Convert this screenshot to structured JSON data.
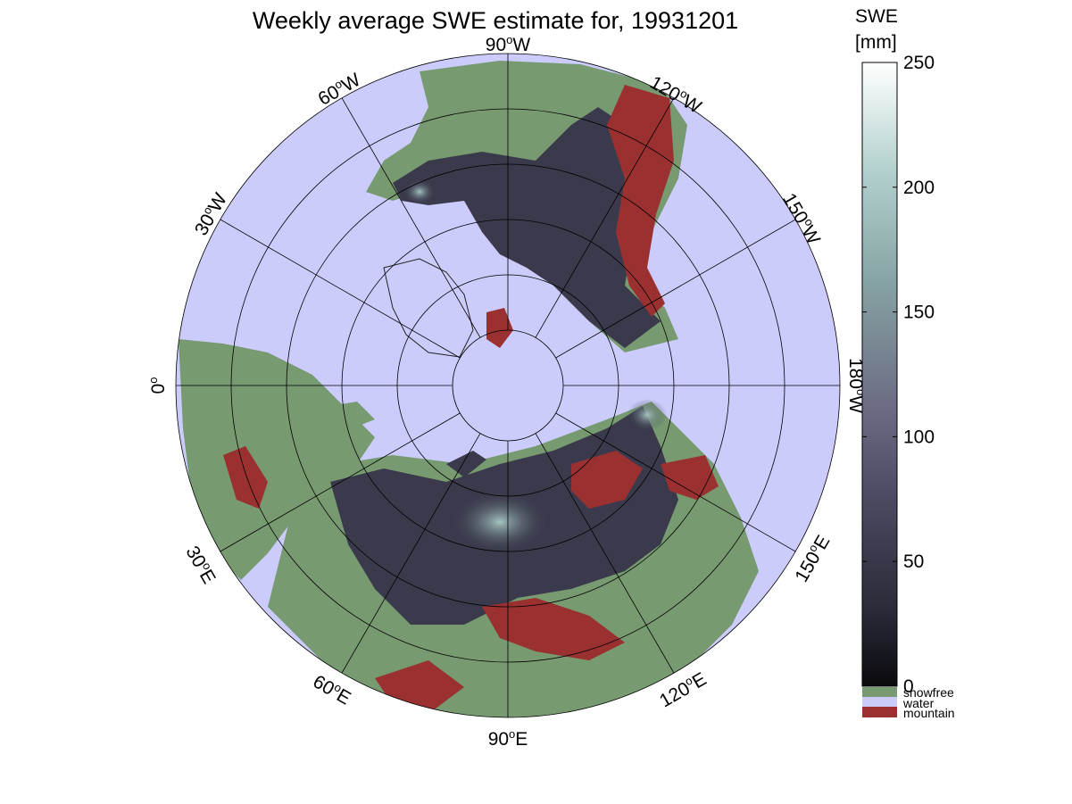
{
  "title": "Weekly average SWE estimate for, 19931201",
  "colorbar": {
    "header_line1": "SWE",
    "header_line2": "[mm]",
    "ticks": [
      "250",
      "200",
      "150",
      "100",
      "50",
      "0"
    ],
    "tick_values": [
      250,
      200,
      150,
      100,
      50,
      0
    ],
    "range": [
      0,
      250
    ],
    "gradient_colors": [
      "#0a0a0e",
      "#2a2a38",
      "#4a4a62",
      "#6c6c84",
      "#87a4a4",
      "#b0cfcc",
      "#ffffff"
    ]
  },
  "legend": {
    "items": [
      {
        "label": "snowfree",
        "color": "#779a70"
      },
      {
        "label": "water",
        "color": "#ccccfc"
      },
      {
        "label": "mountain",
        "color": "#9a3030"
      }
    ]
  },
  "map": {
    "projection": "north-polar",
    "ocean_color": "#ccccfc",
    "land_color": "#779a70",
    "snow_color": "#3a3a4c",
    "mountain_color": "#9a3030",
    "longitude_labels": [
      {
        "deg": "90",
        "hemi": "W"
      },
      {
        "deg": "120",
        "hemi": "W"
      },
      {
        "deg": "150",
        "hemi": "W"
      },
      {
        "deg": "180",
        "hemi": "W"
      },
      {
        "deg": "150",
        "hemi": "E"
      },
      {
        "deg": "120",
        "hemi": "E"
      },
      {
        "deg": "90",
        "hemi": "E"
      },
      {
        "deg": "60",
        "hemi": "E"
      },
      {
        "deg": "30",
        "hemi": "E"
      },
      {
        "deg": "0",
        "hemi": ""
      },
      {
        "deg": "30",
        "hemi": "W"
      },
      {
        "deg": "60",
        "hemi": "W"
      }
    ]
  }
}
